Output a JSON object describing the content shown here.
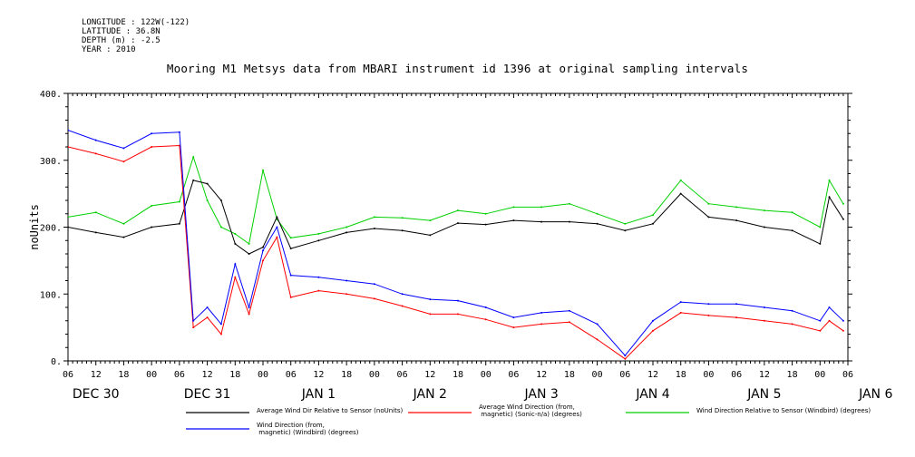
{
  "header": {
    "longitude": "LONGITUDE : 122W(-122)",
    "latitude": "LATITUDE : 36.8N",
    "depth": "DEPTH (m) : -2.5",
    "year": "YEAR : 2010"
  },
  "chart_data": {
    "type": "line",
    "title": "Mooring M1 Metsys data from MBARI instrument id 1396 at original sampling intervals",
    "ylabel": "noUnits",
    "ylim": [
      0,
      400
    ],
    "yticks": [
      "0.",
      "100.",
      "200.",
      "300.",
      "400."
    ],
    "xlim_hours": [
      0,
      168
    ],
    "hour_ticks": [
      "06",
      "12",
      "18",
      "00",
      "06",
      "12",
      "18",
      "00",
      "06",
      "12",
      "18",
      "00",
      "06",
      "12",
      "18",
      "00",
      "06",
      "12",
      "18",
      "00",
      "06",
      "12",
      "18",
      "00",
      "06",
      "12",
      "18",
      "00",
      "06"
    ],
    "date_labels": [
      "DEC 30",
      "DEC 31",
      "JAN 1",
      "JAN 2",
      "JAN 3",
      "JAN 4",
      "JAN 5",
      "JAN 6"
    ],
    "grid": false,
    "legend_position": "bottom",
    "series": [
      {
        "name": "Average Wind Dir Relative to Sensor (noUnits)",
        "color": "#000000",
        "points": [
          [
            0,
            200
          ],
          [
            6,
            192
          ],
          [
            12,
            185
          ],
          [
            18,
            200
          ],
          [
            24,
            205
          ],
          [
            27,
            270
          ],
          [
            30,
            265
          ],
          [
            33,
            240
          ],
          [
            36,
            175
          ],
          [
            39,
            160
          ],
          [
            42,
            170
          ],
          [
            45,
            215
          ],
          [
            48,
            168
          ],
          [
            54,
            180
          ],
          [
            60,
            192
          ],
          [
            66,
            198
          ],
          [
            72,
            195
          ],
          [
            78,
            188
          ],
          [
            84,
            206
          ],
          [
            90,
            204
          ],
          [
            96,
            210
          ],
          [
            102,
            208
          ],
          [
            108,
            208
          ],
          [
            114,
            205
          ],
          [
            120,
            195
          ],
          [
            126,
            205
          ],
          [
            132,
            250
          ],
          [
            138,
            215
          ],
          [
            144,
            210
          ],
          [
            150,
            200
          ],
          [
            156,
            195
          ],
          [
            162,
            175
          ],
          [
            164,
            245
          ],
          [
            167,
            212
          ]
        ]
      },
      {
        "name": "Average Wind Direction (from, magnetic) (Sonic-n/a) (degrees)",
        "color": "#ff0000",
        "points": [
          [
            0,
            320
          ],
          [
            6,
            310
          ],
          [
            12,
            298
          ],
          [
            18,
            320
          ],
          [
            24,
            322
          ],
          [
            27,
            50
          ],
          [
            30,
            65
          ],
          [
            33,
            40
          ],
          [
            36,
            125
          ],
          [
            39,
            70
          ],
          [
            42,
            150
          ],
          [
            45,
            185
          ],
          [
            48,
            95
          ],
          [
            54,
            105
          ],
          [
            60,
            100
          ],
          [
            66,
            93
          ],
          [
            72,
            82
          ],
          [
            78,
            70
          ],
          [
            84,
            70
          ],
          [
            90,
            62
          ],
          [
            96,
            50
          ],
          [
            102,
            55
          ],
          [
            108,
            58
          ],
          [
            114,
            32
          ],
          [
            120,
            3
          ],
          [
            126,
            45
          ],
          [
            132,
            72
          ],
          [
            138,
            68
          ],
          [
            144,
            65
          ],
          [
            150,
            60
          ],
          [
            156,
            55
          ],
          [
            162,
            45
          ],
          [
            164,
            60
          ],
          [
            167,
            45
          ]
        ]
      },
      {
        "name": "Wind Direction Relative to Sensor (Windbird) (degrees)",
        "color": "#00d000",
        "points": [
          [
            0,
            215
          ],
          [
            6,
            222
          ],
          [
            12,
            205
          ],
          [
            18,
            232
          ],
          [
            24,
            238
          ],
          [
            27,
            305
          ],
          [
            30,
            240
          ],
          [
            33,
            200
          ],
          [
            36,
            190
          ],
          [
            39,
            175
          ],
          [
            42,
            285
          ],
          [
            45,
            212
          ],
          [
            48,
            184
          ],
          [
            54,
            190
          ],
          [
            60,
            200
          ],
          [
            66,
            215
          ],
          [
            72,
            214
          ],
          [
            78,
            210
          ],
          [
            84,
            225
          ],
          [
            90,
            220
          ],
          [
            96,
            230
          ],
          [
            102,
            230
          ],
          [
            108,
            235
          ],
          [
            114,
            220
          ],
          [
            120,
            205
          ],
          [
            126,
            218
          ],
          [
            132,
            270
          ],
          [
            138,
            235
          ],
          [
            144,
            230
          ],
          [
            150,
            225
          ],
          [
            156,
            222
          ],
          [
            162,
            200
          ],
          [
            164,
            270
          ],
          [
            167,
            235
          ]
        ]
      },
      {
        "name": "Wind Direction (from, magnetic) (Windbird) (degrees)",
        "color": "#0000ff",
        "points": [
          [
            0,
            345
          ],
          [
            6,
            330
          ],
          [
            12,
            318
          ],
          [
            18,
            340
          ],
          [
            24,
            342
          ],
          [
            27,
            60
          ],
          [
            30,
            80
          ],
          [
            33,
            55
          ],
          [
            36,
            145
          ],
          [
            39,
            80
          ],
          [
            42,
            165
          ],
          [
            45,
            200
          ],
          [
            48,
            128
          ],
          [
            54,
            125
          ],
          [
            60,
            120
          ],
          [
            66,
            115
          ],
          [
            72,
            100
          ],
          [
            78,
            92
          ],
          [
            84,
            90
          ],
          [
            90,
            80
          ],
          [
            96,
            65
          ],
          [
            102,
            72
          ],
          [
            108,
            75
          ],
          [
            114,
            55
          ],
          [
            120,
            8
          ],
          [
            126,
            60
          ],
          [
            132,
            88
          ],
          [
            138,
            85
          ],
          [
            144,
            85
          ],
          [
            150,
            80
          ],
          [
            156,
            75
          ],
          [
            162,
            60
          ],
          [
            164,
            80
          ],
          [
            167,
            60
          ]
        ]
      }
    ]
  }
}
